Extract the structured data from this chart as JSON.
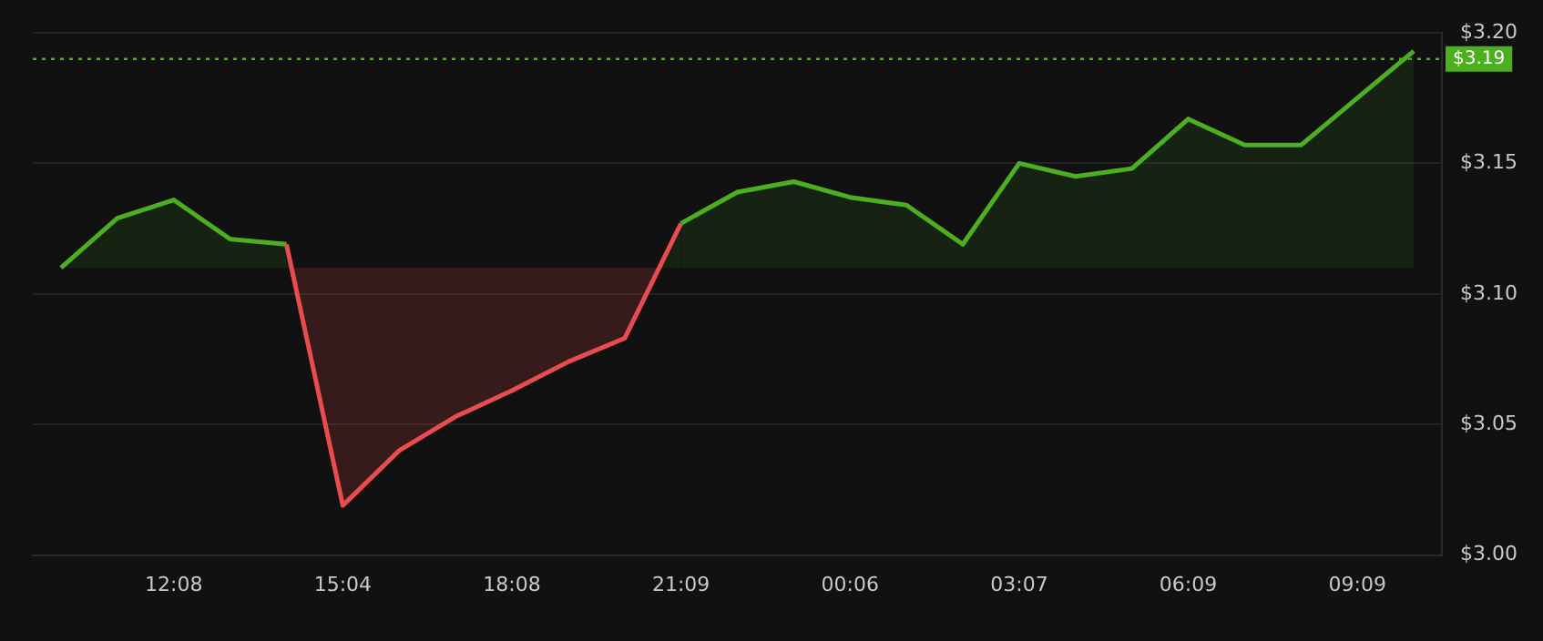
{
  "chart_data": {
    "type": "area",
    "categories": [
      null,
      null,
      "12:08",
      null,
      null,
      "15:04",
      null,
      null,
      "18:08",
      null,
      null,
      "21:09",
      null,
      null,
      "00:06",
      null,
      null,
      "03:07",
      null,
      null,
      "06:09",
      null,
      null,
      "09:09",
      null
    ],
    "series": [
      {
        "color": "#4caf1f",
        "colors": [
          "#4caf1f",
          "#4caf1f",
          "#4caf1f",
          "#4caf1f",
          "#4caf1f",
          "#e84c4c",
          "#e84c4c",
          "#e84c4c",
          "#e84c4c",
          "#e84c4c",
          "#e84c4c",
          "#4caf1f",
          "#4caf1f",
          "#4caf1f",
          "#4caf1f",
          "#4caf1f",
          "#4caf1f",
          "#4caf1f",
          "#4caf1f",
          "#4caf1f",
          "#4caf1f",
          "#4caf1f",
          "#4caf1f",
          "#4caf1f",
          "#4caf1f"
        ],
        "values": [
          3.11,
          3.129,
          3.136,
          3.121,
          3.119,
          3.019,
          3.04,
          3.053,
          3.063,
          3.074,
          3.083,
          3.127,
          3.139,
          3.143,
          3.137,
          3.134,
          3.119,
          3.15,
          3.145,
          3.148,
          3.167,
          3.157,
          3.157,
          3.175,
          3.193
        ]
      }
    ],
    "ylim": [
      3.0,
      3.2
    ],
    "yticks": [
      {
        "value": 3.0,
        "label": "$3.00"
      },
      {
        "value": 3.05,
        "label": "$3.05"
      },
      {
        "value": 3.1,
        "label": "$3.10"
      },
      {
        "value": 3.15,
        "label": "$3.15"
      },
      {
        "value": 3.2,
        "label": "$3.20"
      }
    ],
    "ref_lines": [
      {
        "axis": "y",
        "value": 3.19,
        "label": "$3.19",
        "color": "#4caf1f",
        "line_style": "dotted"
      }
    ],
    "grid": "y",
    "legend": false,
    "marker": "none",
    "line_style": "solid"
  }
}
